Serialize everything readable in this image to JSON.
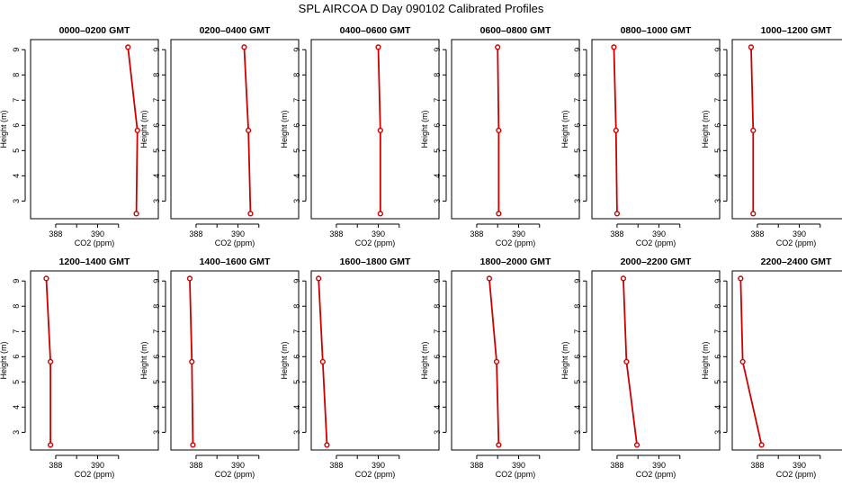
{
  "title": "SPL AIRCOA D  Day 090102  Calibrated Profiles",
  "colors": {
    "series": "#cc0000",
    "axis": "#000000"
  },
  "chart_data": [
    {
      "type": "line",
      "title": "0000–0200 GMT",
      "xlabel": "CO2 (ppm)",
      "ylabel": "Height (m)",
      "xlim": [
        386.8,
        392.9
      ],
      "ylim": [
        2.3,
        9.4
      ],
      "xticks": [
        388,
        390
      ],
      "xtick_labels": [
        "388",
        "390"
      ],
      "yticks": [
        3,
        4,
        5,
        6,
        7,
        8,
        9
      ],
      "ytick_labels": [
        "3",
        "4",
        "5",
        "6",
        "7",
        "8",
        "9"
      ],
      "series": [
        {
          "points": [
            {
              "x": 391.45,
              "y": 9.1
            },
            {
              "x": 391.9,
              "y": 5.8
            },
            {
              "x": 391.85,
              "y": 2.5
            }
          ]
        }
      ]
    },
    {
      "type": "line",
      "title": "0200–0400 GMT",
      "xlabel": "CO2 (ppm)",
      "ylabel": "Height (m)",
      "xlim": [
        386.8,
        392.9
      ],
      "ylim": [
        2.3,
        9.4
      ],
      "xticks": [
        388,
        390
      ],
      "xtick_labels": [
        "388",
        "390"
      ],
      "yticks": [
        3,
        4,
        5,
        6,
        7,
        8,
        9
      ],
      "ytick_labels": [
        "3",
        "4",
        "5",
        "6",
        "7",
        "8",
        "9"
      ],
      "series": [
        {
          "points": [
            {
              "x": 390.3,
              "y": 9.1
            },
            {
              "x": 390.5,
              "y": 5.8
            },
            {
              "x": 390.6,
              "y": 2.5
            }
          ]
        }
      ]
    },
    {
      "type": "line",
      "title": "0400–0600 GMT",
      "xlabel": "CO2 (ppm)",
      "ylabel": "Height (m)",
      "xlim": [
        386.8,
        392.9
      ],
      "ylim": [
        2.3,
        9.4
      ],
      "xticks": [
        388,
        390
      ],
      "xtick_labels": [
        "388",
        "390"
      ],
      "yticks": [
        3,
        4,
        5,
        6,
        7,
        8,
        9
      ],
      "ytick_labels": [
        "3",
        "4",
        "5",
        "6",
        "7",
        "8",
        "9"
      ],
      "series": [
        {
          "points": [
            {
              "x": 390.0,
              "y": 9.1
            },
            {
              "x": 390.1,
              "y": 5.8
            },
            {
              "x": 390.1,
              "y": 2.5
            }
          ]
        }
      ]
    },
    {
      "type": "line",
      "title": "0600–0800 GMT",
      "xlabel": "CO2 (ppm)",
      "ylabel": "Height (m)",
      "xlim": [
        386.8,
        392.9
      ],
      "ylim": [
        2.3,
        9.4
      ],
      "xticks": [
        388,
        390
      ],
      "xtick_labels": [
        "388",
        "390"
      ],
      "yticks": [
        3,
        4,
        5,
        6,
        7,
        8,
        9
      ],
      "ytick_labels": [
        "3",
        "4",
        "5",
        "6",
        "7",
        "8",
        "9"
      ],
      "series": [
        {
          "points": [
            {
              "x": 389.0,
              "y": 9.1
            },
            {
              "x": 389.05,
              "y": 5.8
            },
            {
              "x": 389.05,
              "y": 2.5
            }
          ]
        }
      ]
    },
    {
      "type": "line",
      "title": "0800–1000 GMT",
      "xlabel": "CO2 (ppm)",
      "ylabel": "Height (m)",
      "xlim": [
        386.8,
        392.9
      ],
      "ylim": [
        2.3,
        9.4
      ],
      "xticks": [
        388,
        390
      ],
      "xtick_labels": [
        "388",
        "390"
      ],
      "yticks": [
        3,
        4,
        5,
        6,
        7,
        8,
        9
      ],
      "ytick_labels": [
        "3",
        "4",
        "5",
        "6",
        "7",
        "8",
        "9"
      ],
      "series": [
        {
          "points": [
            {
              "x": 387.85,
              "y": 9.1
            },
            {
              "x": 387.95,
              "y": 5.8
            },
            {
              "x": 388.0,
              "y": 2.5
            }
          ]
        }
      ]
    },
    {
      "type": "line",
      "title": "1000–1200 GMT",
      "xlabel": "CO2 (ppm)",
      "ylabel": "Height (m)",
      "xlim": [
        386.8,
        392.9
      ],
      "ylim": [
        2.3,
        9.4
      ],
      "xticks": [
        388,
        390
      ],
      "xtick_labels": [
        "388",
        "390"
      ],
      "yticks": [
        3,
        4,
        5,
        6,
        7,
        8,
        9
      ],
      "ytick_labels": [
        "3",
        "4",
        "5",
        "6",
        "7",
        "8",
        "9"
      ],
      "series": [
        {
          "points": [
            {
              "x": 387.7,
              "y": 9.1
            },
            {
              "x": 387.8,
              "y": 5.8
            },
            {
              "x": 387.8,
              "y": 2.5
            }
          ]
        }
      ]
    },
    {
      "type": "line",
      "title": "1200–1400 GMT",
      "xlabel": "CO2 (ppm)",
      "ylabel": "Height (m)",
      "xlim": [
        386.8,
        392.9
      ],
      "ylim": [
        2.3,
        9.4
      ],
      "xticks": [
        388,
        390
      ],
      "xtick_labels": [
        "388",
        "390"
      ],
      "yticks": [
        3,
        4,
        5,
        6,
        7,
        8,
        9
      ],
      "ytick_labels": [
        "3",
        "4",
        "5",
        "6",
        "7",
        "8",
        "9"
      ],
      "series": [
        {
          "points": [
            {
              "x": 387.55,
              "y": 9.1
            },
            {
              "x": 387.75,
              "y": 5.8
            },
            {
              "x": 387.75,
              "y": 2.5
            }
          ]
        }
      ]
    },
    {
      "type": "line",
      "title": "1400–1600 GMT",
      "xlabel": "CO2 (ppm)",
      "ylabel": "Height (m)",
      "xlim": [
        386.8,
        392.9
      ],
      "ylim": [
        2.3,
        9.4
      ],
      "xticks": [
        388,
        390
      ],
      "xtick_labels": [
        "388",
        "390"
      ],
      "yticks": [
        3,
        4,
        5,
        6,
        7,
        8,
        9
      ],
      "ytick_labels": [
        "3",
        "4",
        "5",
        "6",
        "7",
        "8",
        "9"
      ],
      "series": [
        {
          "points": [
            {
              "x": 387.7,
              "y": 9.1
            },
            {
              "x": 387.8,
              "y": 5.8
            },
            {
              "x": 387.85,
              "y": 2.5
            }
          ]
        }
      ]
    },
    {
      "type": "line",
      "title": "1600–1800 GMT",
      "xlabel": "CO2 (ppm)",
      "ylabel": "Height (m)",
      "xlim": [
        386.8,
        392.9
      ],
      "ylim": [
        2.3,
        9.4
      ],
      "xticks": [
        388,
        390
      ],
      "xtick_labels": [
        "388",
        "390"
      ],
      "yticks": [
        3,
        4,
        5,
        6,
        7,
        8,
        9
      ],
      "ytick_labels": [
        "3",
        "4",
        "5",
        "6",
        "7",
        "8",
        "9"
      ],
      "series": [
        {
          "points": [
            {
              "x": 387.15,
              "y": 9.1
            },
            {
              "x": 387.35,
              "y": 5.8
            },
            {
              "x": 387.55,
              "y": 2.5
            }
          ]
        }
      ]
    },
    {
      "type": "line",
      "title": "1800–2000 GMT",
      "xlabel": "CO2 (ppm)",
      "ylabel": "Height (m)",
      "xlim": [
        386.8,
        392.9
      ],
      "ylim": [
        2.3,
        9.4
      ],
      "xticks": [
        388,
        390
      ],
      "xtick_labels": [
        "388",
        "390"
      ],
      "yticks": [
        3,
        4,
        5,
        6,
        7,
        8,
        9
      ],
      "ytick_labels": [
        "3",
        "4",
        "5",
        "6",
        "7",
        "8",
        "9"
      ],
      "series": [
        {
          "points": [
            {
              "x": 388.6,
              "y": 9.1
            },
            {
              "x": 388.95,
              "y": 5.8
            },
            {
              "x": 389.05,
              "y": 2.5
            }
          ]
        }
      ]
    },
    {
      "type": "line",
      "title": "2000–2200 GMT",
      "xlabel": "CO2 (ppm)",
      "ylabel": "Height (m)",
      "xlim": [
        386.8,
        392.9
      ],
      "ylim": [
        2.3,
        9.4
      ],
      "xticks": [
        388,
        390
      ],
      "xtick_labels": [
        "388",
        "390"
      ],
      "yticks": [
        3,
        4,
        5,
        6,
        7,
        8,
        9
      ],
      "ytick_labels": [
        "3",
        "4",
        "5",
        "6",
        "7",
        "8",
        "9"
      ],
      "series": [
        {
          "points": [
            {
              "x": 388.3,
              "y": 9.1
            },
            {
              "x": 388.45,
              "y": 5.8
            },
            {
              "x": 388.95,
              "y": 2.5
            }
          ]
        }
      ]
    },
    {
      "type": "line",
      "title": "2200–2400 GMT",
      "xlabel": "CO2 (ppm)",
      "ylabel": "Height (m)",
      "xlim": [
        386.8,
        392.9
      ],
      "ylim": [
        2.3,
        9.4
      ],
      "xticks": [
        388,
        390
      ],
      "xtick_labels": [
        "388",
        "390"
      ],
      "yticks": [
        3,
        4,
        5,
        6,
        7,
        8,
        9
      ],
      "ytick_labels": [
        "3",
        "4",
        "5",
        "6",
        "7",
        "8",
        "9"
      ],
      "series": [
        {
          "points": [
            {
              "x": 387.2,
              "y": 9.1
            },
            {
              "x": 387.3,
              "y": 5.8
            },
            {
              "x": 388.2,
              "y": 2.5
            }
          ]
        }
      ]
    }
  ]
}
